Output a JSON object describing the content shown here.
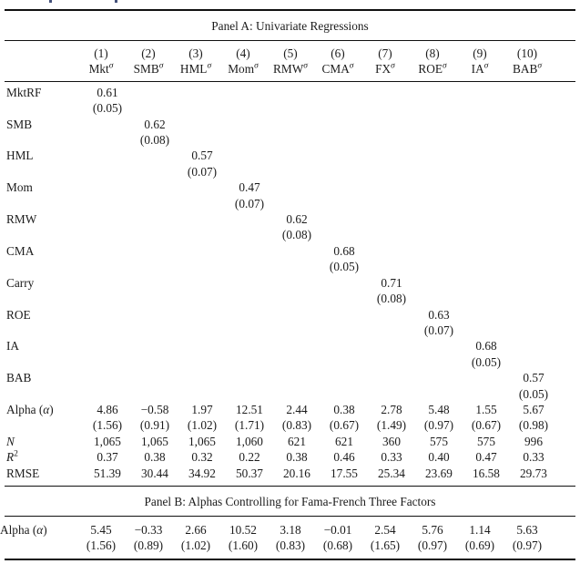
{
  "sigma": "σ",
  "alpha_label": {
    "pre": "Alpha (",
    "sym": "α",
    "post": ")"
  },
  "panel_a": {
    "title": "Panel A: Univariate Regressions",
    "columns": [
      {
        "num": "(1)",
        "name": "Mkt"
      },
      {
        "num": "(2)",
        "name": "SMB"
      },
      {
        "num": "(3)",
        "name": "HML"
      },
      {
        "num": "(4)",
        "name": "Mom"
      },
      {
        "num": "(5)",
        "name": "RMW"
      },
      {
        "num": "(6)",
        "name": "CMA"
      },
      {
        "num": "(7)",
        "name": "FX"
      },
      {
        "num": "(8)",
        "name": "ROE"
      },
      {
        "num": "(9)",
        "name": "IA"
      },
      {
        "num": "(10)",
        "name": "BAB"
      }
    ],
    "factor_rows": [
      {
        "label": "MktRF",
        "est": "0.61",
        "se": "(0.05)"
      },
      {
        "label": "SMB",
        "est": "0.62",
        "se": "(0.08)"
      },
      {
        "label": "HML",
        "est": "0.57",
        "se": "(0.07)"
      },
      {
        "label": "Mom",
        "est": "0.47",
        "se": "(0.07)"
      },
      {
        "label": "RMW",
        "est": "0.62",
        "se": "(0.08)"
      },
      {
        "label": "CMA",
        "est": "0.68",
        "se": "(0.05)"
      },
      {
        "label": "Carry",
        "est": "0.71",
        "se": "(0.08)"
      },
      {
        "label": "ROE",
        "est": "0.63",
        "se": "(0.07)"
      },
      {
        "label": "IA",
        "est": "0.68",
        "se": "(0.05)"
      },
      {
        "label": "BAB",
        "est": "0.57",
        "se": "(0.05)"
      }
    ],
    "alpha_row": {
      "values": [
        "4.86",
        "−0.58",
        "1.97",
        "12.51",
        "2.44",
        "0.38",
        "2.78",
        "5.48",
        "1.55",
        "5.67"
      ],
      "se": [
        "(1.56)",
        "(0.91)",
        "(1.02)",
        "(1.71)",
        "(0.83)",
        "(0.67)",
        "(1.49)",
        "(0.97)",
        "(0.67)",
        "(0.98)"
      ]
    },
    "n_row": {
      "label": "N",
      "values": [
        "1,065",
        "1,065",
        "1,065",
        "1,060",
        "621",
        "621",
        "360",
        "575",
        "575",
        "996"
      ]
    },
    "r2_row": {
      "label_base": "R",
      "label_sup": "2",
      "values": [
        "0.37",
        "0.38",
        "0.32",
        "0.22",
        "0.38",
        "0.46",
        "0.33",
        "0.40",
        "0.47",
        "0.33"
      ]
    },
    "rmse_row": {
      "label": "RMSE",
      "values": [
        "51.39",
        "30.44",
        "34.92",
        "50.37",
        "20.16",
        "17.55",
        "25.34",
        "23.69",
        "16.58",
        "29.73"
      ]
    }
  },
  "panel_b": {
    "title": "Panel B: Alphas Controlling for Fama-French Three Factors",
    "alpha_row": {
      "values": [
        "5.45",
        "−0.33",
        "2.66",
        "10.52",
        "3.18",
        "−0.01",
        "2.54",
        "5.76",
        "1.14",
        "5.63"
      ],
      "se": [
        "(1.56)",
        "(0.89)",
        "(1.02)",
        "(1.60)",
        "(0.83)",
        "(0.68)",
        "(1.65)",
        "(0.97)",
        "(0.69)",
        "(0.97)"
      ]
    }
  }
}
